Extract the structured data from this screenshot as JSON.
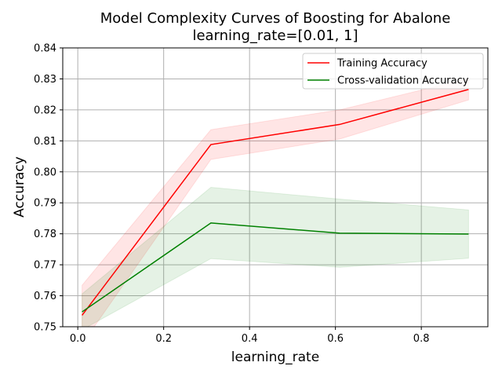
{
  "chart_data": {
    "type": "line",
    "title": [
      "Model Complexity Curves of Boosting for Abalone",
      "learning_rate=[0.01, 1]"
    ],
    "xlabel": "learning_rate",
    "ylabel": "Accuracy",
    "xlim": [
      -0.035,
      0.955
    ],
    "ylim": [
      0.75,
      0.84
    ],
    "xticks": [
      0.0,
      0.2,
      0.4,
      0.6,
      0.8
    ],
    "xtick_labels": [
      "0.0",
      "0.2",
      "0.4",
      "0.6",
      "0.8"
    ],
    "yticks": [
      0.75,
      0.76,
      0.77,
      0.78,
      0.79,
      0.8,
      0.81,
      0.82,
      0.83,
      0.84
    ],
    "ytick_labels": [
      "0.75",
      "0.76",
      "0.77",
      "0.78",
      "0.79",
      "0.80",
      "0.81",
      "0.82",
      "0.83",
      "0.84"
    ],
    "grid": true,
    "legend_position": "top-right",
    "x": [
      0.01,
      0.31,
      0.61,
      0.91
    ],
    "series": [
      {
        "name": "Training Accuracy",
        "color": "#ff0000",
        "band_color": "#ff0000",
        "values": [
          0.7537,
          0.8088,
          0.8153,
          0.8266
        ],
        "lower": [
          0.7444,
          0.804,
          0.8106,
          0.8232
        ],
        "upper": [
          0.7634,
          0.8136,
          0.82,
          0.8301
        ]
      },
      {
        "name": "Cross-validation Accuracy",
        "color": "#008000",
        "band_color": "#008000",
        "values": [
          0.7548,
          0.7835,
          0.7802,
          0.7799
        ],
        "lower": [
          0.749,
          0.772,
          0.7692,
          0.7721
        ],
        "upper": [
          0.7606,
          0.795,
          0.7912,
          0.7877
        ]
      }
    ]
  }
}
